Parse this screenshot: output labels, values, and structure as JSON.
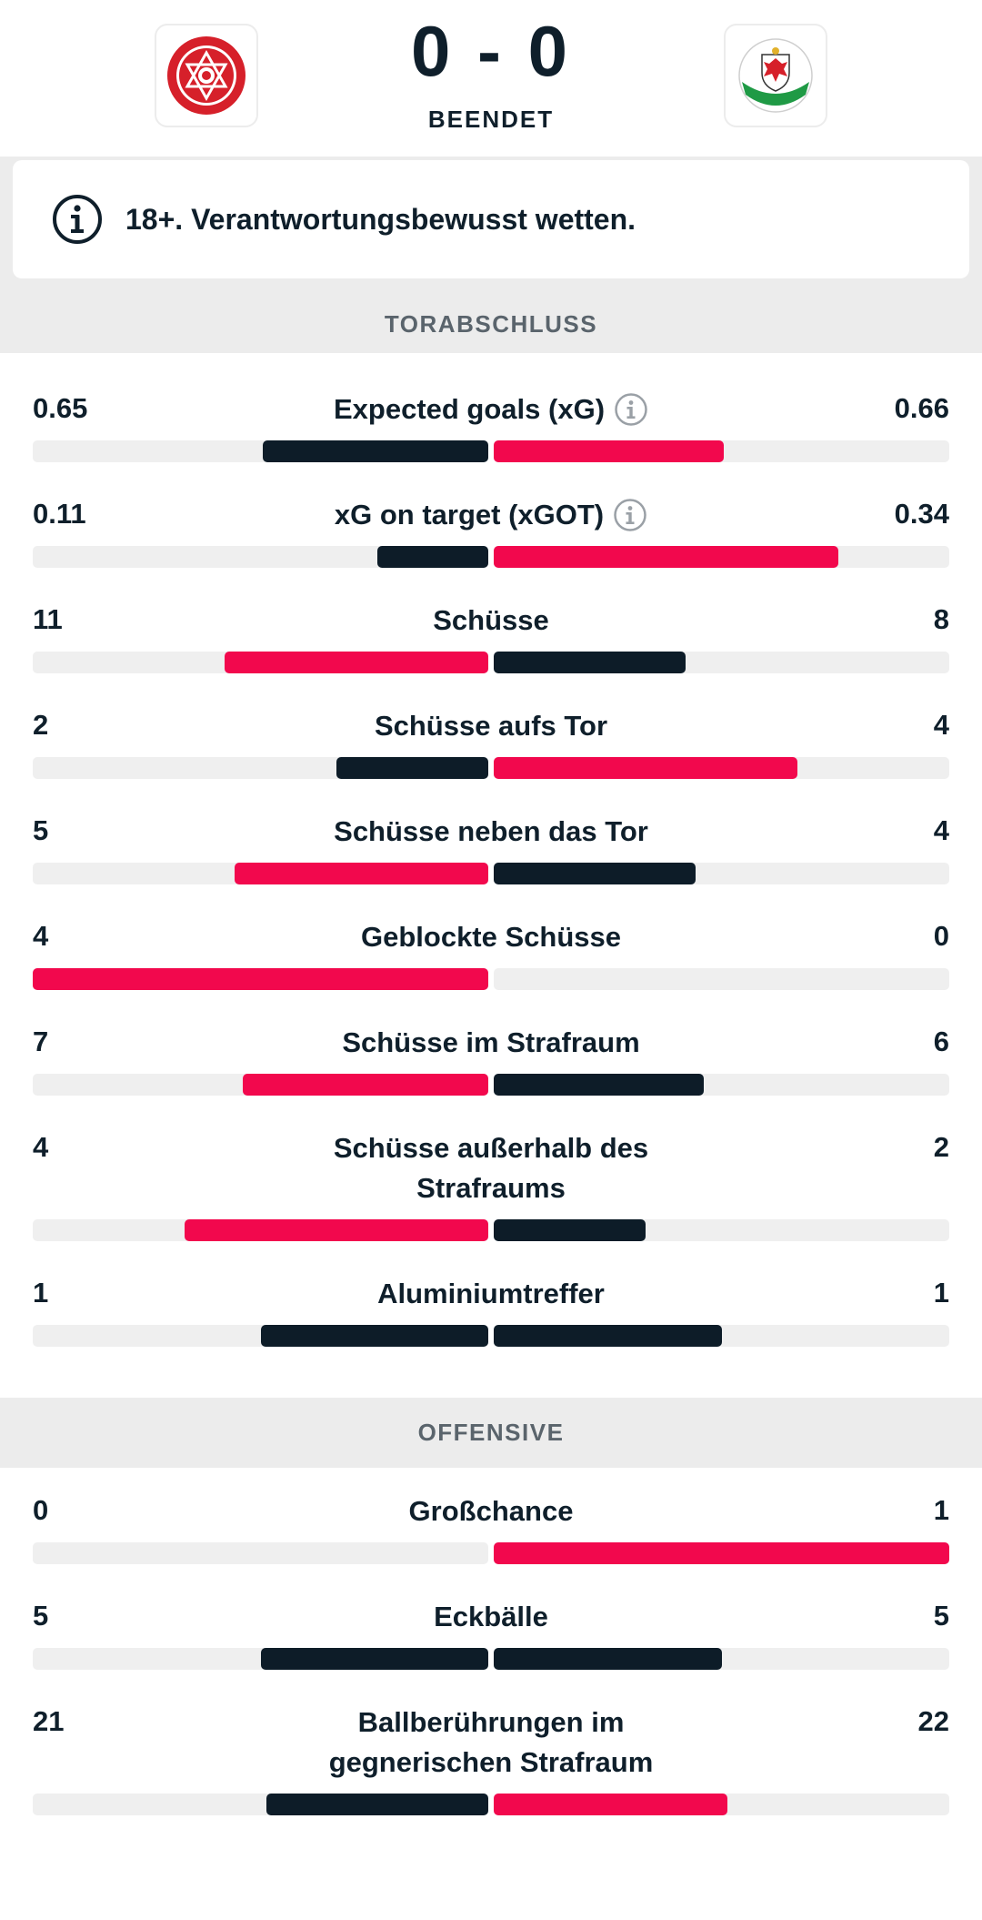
{
  "header": {
    "score": "0 - 0",
    "status": "BEENDET"
  },
  "notice": {
    "text": "18+. Verantwortungsbewusst wetten.",
    "icon": "info-icon"
  },
  "colors": {
    "accent_red": "#f2084d",
    "dark": "#0d1c28",
    "track": "#efefef"
  },
  "sections": [
    {
      "title": "TORABSCHLUSS",
      "stats": [
        {
          "label": "Expected goals (xG)",
          "home": "0.65",
          "away": "0.66",
          "home_share": 0.495,
          "away_share": 0.505,
          "info": true,
          "home_color": "dark",
          "away_color": "red"
        },
        {
          "label": "xG on target (xGOT)",
          "home": "0.11",
          "away": "0.34",
          "home_share": 0.244,
          "away_share": 0.756,
          "info": true,
          "home_color": "dark",
          "away_color": "red"
        },
        {
          "label": "Schüsse",
          "home": "11",
          "away": "8",
          "home_share": 0.579,
          "away_share": 0.421,
          "info": false,
          "home_color": "red",
          "away_color": "dark"
        },
        {
          "label": "Schüsse aufs Tor",
          "home": "2",
          "away": "4",
          "home_share": 0.333,
          "away_share": 0.667,
          "info": false,
          "home_color": "dark",
          "away_color": "red"
        },
        {
          "label": "Schüsse neben das Tor",
          "home": "5",
          "away": "4",
          "home_share": 0.556,
          "away_share": 0.444,
          "info": false,
          "home_color": "red",
          "away_color": "dark"
        },
        {
          "label": "Geblockte Schüsse",
          "home": "4",
          "away": "0",
          "home_share": 1.0,
          "away_share": 0.0,
          "info": false,
          "home_color": "red",
          "away_color": "dark"
        },
        {
          "label": "Schüsse im Strafraum",
          "home": "7",
          "away": "6",
          "home_share": 0.538,
          "away_share": 0.462,
          "info": false,
          "home_color": "red",
          "away_color": "dark"
        },
        {
          "label": "Schüsse außerhalb des Strafraums",
          "home": "4",
          "away": "2",
          "home_share": 0.667,
          "away_share": 0.333,
          "info": false,
          "home_color": "red",
          "away_color": "dark"
        },
        {
          "label": "Aluminiumtreffer",
          "home": "1",
          "away": "1",
          "home_share": 0.5,
          "away_share": 0.5,
          "info": false,
          "home_color": "dark",
          "away_color": "dark"
        }
      ]
    },
    {
      "title": "OFFENSIVE",
      "stats": [
        {
          "label": "Großchance",
          "home": "0",
          "away": "1",
          "home_share": 0.0,
          "away_share": 1.0,
          "info": false,
          "home_color": "dark",
          "away_color": "red"
        },
        {
          "label": "Eckbälle",
          "home": "5",
          "away": "5",
          "home_share": 0.5,
          "away_share": 0.5,
          "info": false,
          "home_color": "dark",
          "away_color": "dark"
        },
        {
          "label": "Ballberührungen im gegnerischen Strafraum",
          "home": "21",
          "away": "22",
          "home_share": 0.488,
          "away_share": 0.512,
          "info": false,
          "home_color": "dark",
          "away_color": "red"
        }
      ]
    }
  ]
}
